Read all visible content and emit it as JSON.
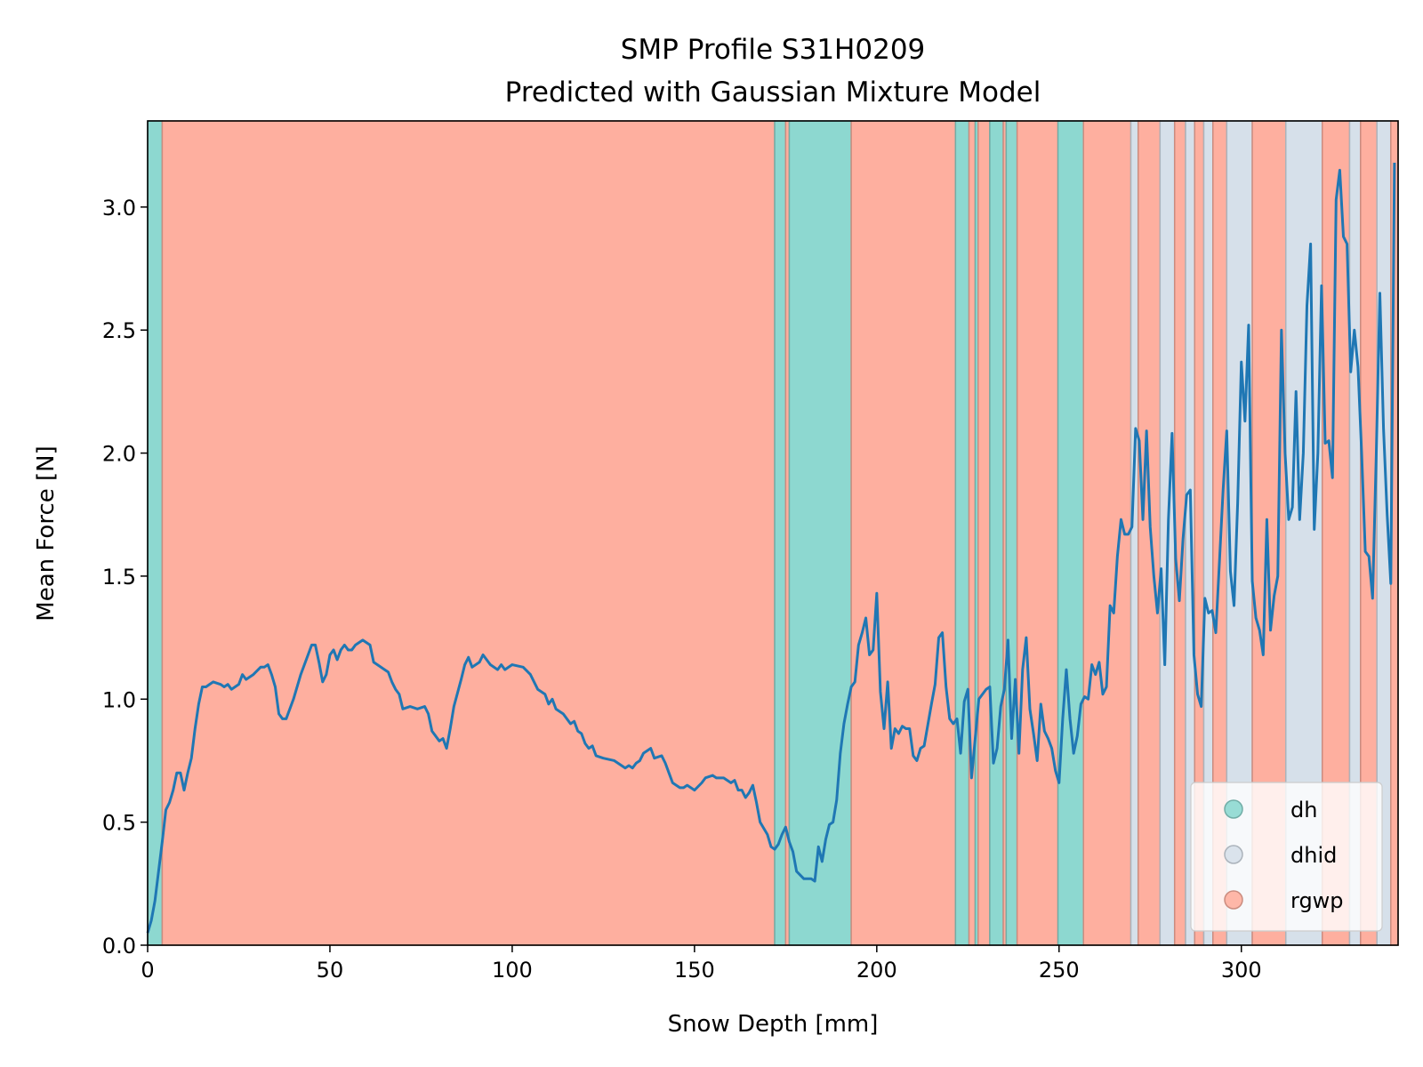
{
  "chart_data": {
    "type": "line",
    "title": "SMP Profile S31H0209",
    "subtitle": "Predicted with Gaussian Mixture Model",
    "xlabel": "Snow Depth [mm]",
    "ylabel": "Mean Force [N]",
    "xlim": [
      0,
      343
    ],
    "ylim": [
      0,
      3.35
    ],
    "xticks": [
      0,
      50,
      100,
      150,
      200,
      250,
      300
    ],
    "yticks": [
      {
        "value": 0,
        "label": "0.0"
      },
      0.5,
      {
        "value": 1,
        "label": "1.0"
      },
      1.5,
      {
        "value": 2,
        "label": "2.0"
      },
      2.5,
      {
        "value": 3,
        "label": "3.0"
      }
    ],
    "legend": "lower right",
    "classes": [
      {
        "name": "dh",
        "color": "#8dd8d0"
      },
      {
        "name": "dhid",
        "color": "#d6e0ea"
      },
      {
        "name": "rgwp",
        "color": "#feaf9f"
      }
    ],
    "spans": [
      {
        "start": 0,
        "end": 4,
        "class": "dh"
      },
      {
        "start": 4,
        "end": 172,
        "class": "rgwp"
      },
      {
        "start": 172,
        "end": 175,
        "class": "dh"
      },
      {
        "start": 175,
        "end": 176,
        "class": "rgwp"
      },
      {
        "start": 176,
        "end": 193,
        "class": "dh"
      },
      {
        "start": 193,
        "end": 221.6,
        "class": "rgwp"
      },
      {
        "start": 221.6,
        "end": 225.3,
        "class": "dh"
      },
      {
        "start": 225.3,
        "end": 227,
        "class": "rgwp"
      },
      {
        "start": 227,
        "end": 227.8,
        "class": "dh"
      },
      {
        "start": 227.8,
        "end": 231,
        "class": "rgwp"
      },
      {
        "start": 231,
        "end": 234.7,
        "class": "dh"
      },
      {
        "start": 234.7,
        "end": 235.5,
        "class": "rgwp"
      },
      {
        "start": 235.5,
        "end": 238.5,
        "class": "dh"
      },
      {
        "start": 238.5,
        "end": 249.7,
        "class": "rgwp"
      },
      {
        "start": 249.7,
        "end": 256.7,
        "class": "dh"
      },
      {
        "start": 256.7,
        "end": 269.7,
        "class": "rgwp"
      },
      {
        "start": 269.7,
        "end": 271.7,
        "class": "dhid"
      },
      {
        "start": 271.7,
        "end": 277.7,
        "class": "rgwp"
      },
      {
        "start": 277.7,
        "end": 281.7,
        "class": "dhid"
      },
      {
        "start": 281.7,
        "end": 284.7,
        "class": "rgwp"
      },
      {
        "start": 284.7,
        "end": 287.2,
        "class": "dhid"
      },
      {
        "start": 287.2,
        "end": 289.7,
        "class": "rgwp"
      },
      {
        "start": 289.7,
        "end": 292.2,
        "class": "dhid"
      },
      {
        "start": 292.2,
        "end": 296,
        "class": "rgwp"
      },
      {
        "start": 296,
        "end": 303,
        "class": "dhid"
      },
      {
        "start": 303,
        "end": 312.2,
        "class": "rgwp"
      },
      {
        "start": 312.2,
        "end": 322.2,
        "class": "dhid"
      },
      {
        "start": 322.2,
        "end": 329.7,
        "class": "rgwp"
      },
      {
        "start": 329.7,
        "end": 332.7,
        "class": "dhid"
      },
      {
        "start": 332.7,
        "end": 337.2,
        "class": "rgwp"
      },
      {
        "start": 337.2,
        "end": 341,
        "class": "dhid"
      },
      {
        "start": 341,
        "end": 343,
        "class": "rgwp"
      }
    ],
    "x": [
      0,
      1,
      2,
      3,
      4,
      5,
      6,
      7,
      8,
      9,
      10,
      11,
      12,
      13,
      14,
      15,
      16,
      17,
      18,
      20,
      21,
      22,
      23,
      25,
      26,
      27,
      29,
      31,
      32,
      33,
      34,
      35,
      36,
      37,
      38,
      40,
      42,
      44,
      45,
      46,
      47,
      48,
      49,
      50,
      51,
      52,
      53,
      54,
      55,
      56,
      57,
      58,
      59,
      60,
      61,
      62,
      63,
      65,
      66,
      67,
      68,
      69,
      70,
      72,
      74,
      76,
      77,
      78,
      80,
      81,
      82,
      83,
      84,
      86,
      87,
      88,
      89,
      91,
      92,
      94,
      96,
      97,
      98,
      100,
      103,
      105,
      106,
      107,
      109,
      110,
      111,
      112,
      114,
      116,
      117,
      118,
      119,
      120,
      121,
      122,
      123,
      125,
      128,
      129,
      131,
      132,
      133,
      134,
      135,
      136,
      138,
      139,
      141,
      142,
      143,
      144,
      146,
      147,
      148,
      149,
      150,
      152,
      153,
      155,
      156,
      158,
      160,
      161,
      162,
      163,
      164,
      165,
      166,
      167,
      168,
      170,
      171,
      172,
      173,
      174,
      175,
      176,
      177,
      178,
      180,
      182,
      183,
      184,
      185,
      186,
      187,
      188,
      189,
      190,
      191,
      192,
      193,
      194,
      195,
      196,
      197,
      198,
      199,
      200,
      201,
      202,
      203,
      204,
      205,
      206,
      207,
      208,
      209,
      210,
      211,
      212,
      213,
      215,
      216,
      217,
      218,
      219,
      220,
      221,
      222,
      223,
      224,
      225,
      226,
      227,
      228,
      230,
      231,
      232,
      233,
      234,
      235,
      236,
      237,
      238,
      239,
      240,
      241,
      242,
      243,
      244,
      245,
      246,
      247,
      248,
      249,
      250,
      251,
      252,
      253,
      254,
      255,
      256,
      257,
      258,
      259,
      260,
      261,
      262,
      263,
      264,
      265,
      266,
      267,
      268,
      269,
      270,
      271,
      272,
      273,
      274,
      275,
      276,
      277,
      278,
      279,
      280,
      281,
      282,
      283,
      284,
      285,
      286,
      287,
      288,
      289,
      290,
      291,
      292,
      293,
      295,
      296,
      297,
      298,
      299,
      300,
      301,
      302,
      303,
      304,
      305,
      306,
      307,
      308,
      309,
      310,
      311,
      312,
      313,
      314,
      315,
      316,
      317,
      318,
      319,
      320,
      321,
      322,
      323,
      324,
      325,
      326,
      327,
      328,
      329,
      330,
      331,
      332,
      333,
      334,
      335,
      336,
      337,
      338,
      339,
      340,
      341,
      342
    ],
    "series": [
      {
        "color": "#1f77b4",
        "values": [
          0.05,
          0.1,
          0.18,
          0.3,
          0.42,
          0.55,
          0.58,
          0.63,
          0.7,
          0.7,
          0.63,
          0.7,
          0.76,
          0.88,
          0.98,
          1.05,
          1.05,
          1.06,
          1.07,
          1.06,
          1.05,
          1.06,
          1.04,
          1.06,
          1.1,
          1.08,
          1.1,
          1.13,
          1.13,
          1.14,
          1.1,
          1.05,
          0.94,
          0.92,
          0.92,
          1.0,
          1.1,
          1.18,
          1.22,
          1.22,
          1.15,
          1.07,
          1.1,
          1.18,
          1.2,
          1.16,
          1.2,
          1.22,
          1.2,
          1.2,
          1.22,
          1.23,
          1.24,
          1.23,
          1.22,
          1.15,
          1.14,
          1.12,
          1.11,
          1.07,
          1.04,
          1.02,
          0.96,
          0.97,
          0.96,
          0.97,
          0.94,
          0.87,
          0.83,
          0.84,
          0.8,
          0.88,
          0.97,
          1.08,
          1.14,
          1.17,
          1.13,
          1.15,
          1.18,
          1.14,
          1.12,
          1.14,
          1.12,
          1.14,
          1.13,
          1.1,
          1.07,
          1.04,
          1.02,
          0.98,
          1.0,
          0.96,
          0.94,
          0.9,
          0.91,
          0.87,
          0.86,
          0.82,
          0.8,
          0.81,
          0.77,
          0.76,
          0.75,
          0.74,
          0.72,
          0.73,
          0.72,
          0.74,
          0.75,
          0.78,
          0.8,
          0.76,
          0.77,
          0.74,
          0.7,
          0.66,
          0.64,
          0.64,
          0.65,
          0.64,
          0.63,
          0.66,
          0.68,
          0.69,
          0.68,
          0.68,
          0.66,
          0.67,
          0.63,
          0.63,
          0.6,
          0.62,
          0.65,
          0.58,
          0.5,
          0.45,
          0.4,
          0.39,
          0.41,
          0.45,
          0.48,
          0.42,
          0.38,
          0.3,
          0.27,
          0.27,
          0.26,
          0.4,
          0.34,
          0.43,
          0.49,
          0.5,
          0.59,
          0.78,
          0.9,
          0.98,
          1.05,
          1.07,
          1.22,
          1.27,
          1.33,
          1.18,
          1.2,
          1.43,
          1.03,
          0.88,
          1.07,
          0.8,
          0.88,
          0.86,
          0.89,
          0.88,
          0.88,
          0.77,
          0.75,
          0.8,
          0.81,
          0.98,
          1.06,
          1.25,
          1.27,
          1.05,
          0.92,
          0.9,
          0.92,
          0.78,
          0.99,
          1.04,
          0.68,
          0.84,
          1.0,
          1.04,
          1.05,
          0.74,
          0.8,
          0.97,
          1.04,
          1.24,
          0.84,
          1.08,
          0.78,
          1.12,
          1.25,
          0.96,
          0.86,
          0.75,
          0.98,
          0.87,
          0.84,
          0.8,
          0.71,
          0.66,
          0.92,
          1.12,
          0.92,
          0.78,
          0.85,
          0.98,
          1.01,
          1.0,
          1.14,
          1.1,
          1.15,
          1.02,
          1.05,
          1.38,
          1.35,
          1.58,
          1.73,
          1.67,
          1.67,
          1.7,
          2.1,
          2.05,
          1.73,
          2.09,
          1.7,
          1.5,
          1.35,
          1.53,
          1.14,
          1.73,
          2.08,
          1.57,
          1.4,
          1.65,
          1.83,
          1.85,
          1.18,
          1.02,
          0.97,
          1.41,
          1.35,
          1.36,
          1.27,
          1.85,
          2.09,
          1.52,
          1.38,
          1.8,
          2.37,
          2.13,
          2.52,
          1.48,
          1.33,
          1.28,
          1.18,
          1.73,
          1.28,
          1.42,
          1.5,
          2.5,
          2.0,
          1.73,
          1.78,
          2.25,
          1.73,
          2.0,
          2.6,
          2.85,
          1.69,
          2.0,
          2.68,
          2.04,
          2.05,
          1.9,
          3.03,
          3.15,
          2.88,
          2.85,
          2.33,
          2.5,
          2.35,
          2.0,
          1.6,
          1.58,
          1.41,
          1.99,
          2.65,
          2.1,
          1.75,
          1.47,
          3.18
        ]
      }
    ]
  }
}
